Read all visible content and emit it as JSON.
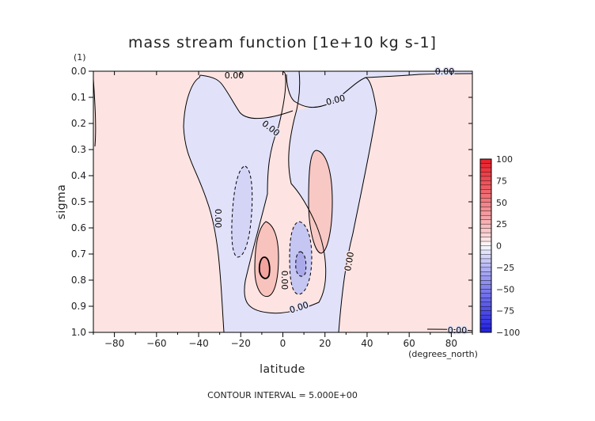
{
  "chart_data": {
    "type": "heatmap",
    "title": "mass stream function [1e+10 kg s-1]",
    "panel_tag": "(1)",
    "xlabel": "latitude",
    "xunits": "(degrees_north)",
    "ylabel": "sigma",
    "xlim": [
      -90,
      90
    ],
    "ylim": [
      1.0,
      0.0
    ],
    "y_reversed": true,
    "x_ticks": [
      -80,
      -60,
      -40,
      -20,
      0,
      20,
      40,
      60,
      80
    ],
    "x_tick_labels": [
      "−80",
      "−60",
      "−40",
      "−20",
      "0",
      "20",
      "40",
      "60",
      "80"
    ],
    "y_ticks": [
      0.0,
      0.1,
      0.2,
      0.3,
      0.4,
      0.5,
      0.6,
      0.7,
      0.8,
      0.9,
      1.0
    ],
    "y_tick_labels": [
      "0.0",
      "0.1",
      "0.2",
      "0.3",
      "0.4",
      "0.5",
      "0.6",
      "0.7",
      "0.8",
      "0.9",
      "1.0"
    ],
    "colorbar": {
      "ticks": [
        100,
        75,
        50,
        25,
        0,
        -25,
        -50,
        -75,
        -100
      ],
      "labels": [
        "100",
        "75",
        "50",
        "25",
        "0",
        "−25",
        "−50",
        "−75",
        "−100"
      ],
      "range": [
        -100,
        100
      ],
      "positive_color": "#e8202a",
      "negative_color": "#2020e0",
      "zero_color": "#ffffff"
    },
    "regions": [
      {
        "sign": "positive",
        "value": 2.5,
        "lat": [
          -90,
          -28
        ],
        "sigma": [
          0.0,
          1.0
        ]
      },
      {
        "sign": "negative",
        "value": -2.5,
        "lat": [
          -25,
          28
        ],
        "sigma": [
          0.03,
          1.0
        ]
      },
      {
        "sign": "positive",
        "value": 2.5,
        "lat": [
          -8,
          25
        ],
        "sigma": [
          0.0,
          0.6
        ]
      },
      {
        "sign": "negative",
        "value": -2.5,
        "lat": [
          0,
          90
        ],
        "sigma": [
          0.0,
          0.12
        ]
      },
      {
        "sign": "positive",
        "value": 2.5,
        "lat": [
          25,
          45
        ],
        "sigma": [
          0.0,
          1.0
        ]
      },
      {
        "sign": "positive",
        "value": 10,
        "lat": [
          -14,
          -4
        ],
        "sigma": [
          0.58,
          0.87
        ]
      },
      {
        "sign": "negative",
        "value": -10,
        "lat": [
          2,
          14
        ],
        "sigma": [
          0.58,
          0.87
        ]
      },
      {
        "sign": "positive",
        "value": 10,
        "lat": [
          10,
          22
        ],
        "sigma": [
          0.3,
          0.62
        ]
      },
      {
        "sign": "negative",
        "value": -10,
        "lat": [
          -24,
          -16
        ],
        "sigma": [
          0.36,
          0.72
        ]
      }
    ],
    "contour_labels": [
      "0.00",
      "0.00",
      "0.00",
      "0.00",
      "0.00",
      "0.00",
      "0.00",
      "0.00",
      "0.00"
    ],
    "footer": "CONTOUR INTERVAL = 5.000E+00"
  }
}
